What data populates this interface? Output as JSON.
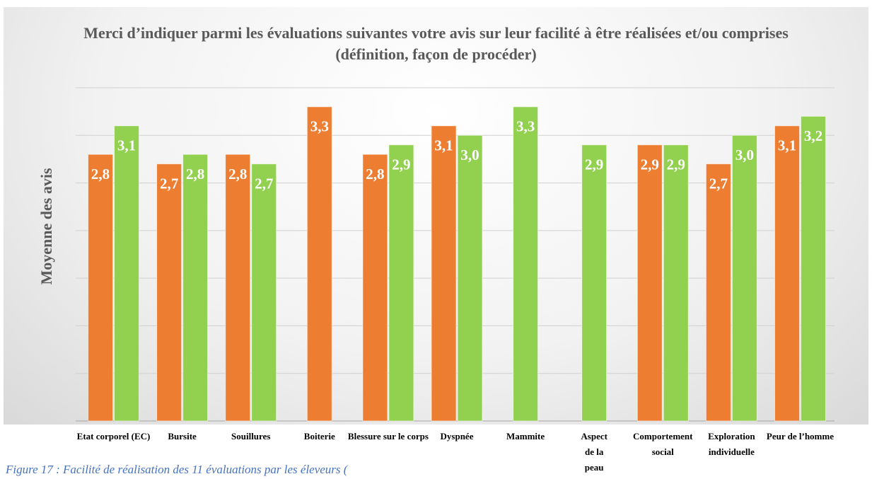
{
  "chart_data": {
    "type": "bar",
    "title": "Merci d’indiquer parmi les évaluations suivantes votre avis sur leur facilité à être réalisées et/ou comprises (définition, façon de procéder)",
    "y_label": "Moyenne des avis",
    "caption": "Figure 17 : Facilité de réalisation des 11 évaluations par les éleveurs (",
    "categories": [
      "Etat corporel (EC)",
      "Bursite",
      "Souillures",
      "Boiterie",
      "Blessure sur le corps",
      "Dyspnée",
      "Mammite",
      "Aspect de la peau",
      "Comportement social",
      "Exploration individuelle",
      "Peur de l’homme"
    ],
    "series": [
      {
        "color": "#ed7d31",
        "values": [
          2.8,
          2.7,
          2.8,
          3.3,
          2.8,
          3.1,
          null,
          null,
          2.9,
          2.7,
          3.1
        ],
        "value_labels": [
          "2,8",
          "2,7",
          "2,8",
          "3,3",
          "2,8",
          "3,1",
          null,
          null,
          "2,9",
          "2,7",
          "3,1"
        ]
      },
      {
        "color": "#92d050",
        "values": [
          3.1,
          2.8,
          2.7,
          null,
          2.9,
          3.0,
          3.3,
          2.9,
          2.9,
          3.0,
          3.2
        ],
        "value_labels": [
          "3,1",
          "2,8",
          "2,7",
          null,
          "2,9",
          "3,0",
          "3,3",
          "2,9",
          "2,9",
          "3,0",
          "3,2"
        ]
      }
    ],
    "ylim": [
      0,
      3.5
    ],
    "yticks": [
      0,
      0.5,
      1,
      1.5,
      2,
      2.5,
      3,
      3.5
    ],
    "grid": true
  }
}
